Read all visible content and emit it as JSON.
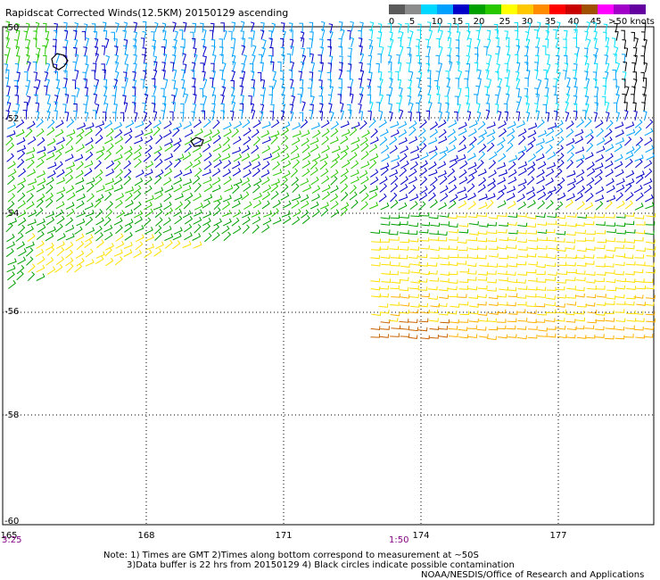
{
  "title": "Rapidscat Corrected Winds(12.5KM) 20150129 ascending",
  "scale": {
    "labels": [
      "0",
      "5",
      "10",
      "15",
      "20",
      "25",
      "30",
      "35",
      "40",
      "45",
      ">50 knots"
    ],
    "colors": [
      "#5a5a5a",
      "#8c8c8c",
      "#00d8ff",
      "#00a0ff",
      "#0000c8",
      "#00a000",
      "#28c800",
      "#ffff00",
      "#ffc800",
      "#ff8c00",
      "#ff0000",
      "#c80000",
      "#a05000",
      "#ff00ff",
      "#a000c8",
      "#6400a0"
    ]
  },
  "lat_labels": [
    "-50",
    "-52",
    "-54",
    "-56",
    "-58",
    "-60"
  ],
  "lon_labels": [
    "165",
    "168",
    "171",
    "174",
    "177"
  ],
  "time_labels": [
    "3:25",
    "1:50"
  ],
  "notes": {
    "line1": "Note: 1) Times are GMT 2)Times along bottom correspond to measurement at ~50S",
    "line2": "3)Data buffer is 22 hrs from 20150129 4) Black circles indicate possible contamination",
    "credit": "NOAA/NESDIS/Office of Research and Applications"
  },
  "map": {
    "lon_range": [
      165,
      179.2
    ],
    "lat_range": [
      -60,
      -50
    ],
    "grid": "dotted",
    "wind_colors": {
      "black": "#000000",
      "cyan": "#00e0ff",
      "lightblue": "#00a0ff",
      "blue": "#0000c8",
      "green": "#00a000",
      "lightgreen": "#28c800",
      "yellow": "#ffe000",
      "orange": "#ffb000",
      "brown": "#c86400"
    }
  }
}
